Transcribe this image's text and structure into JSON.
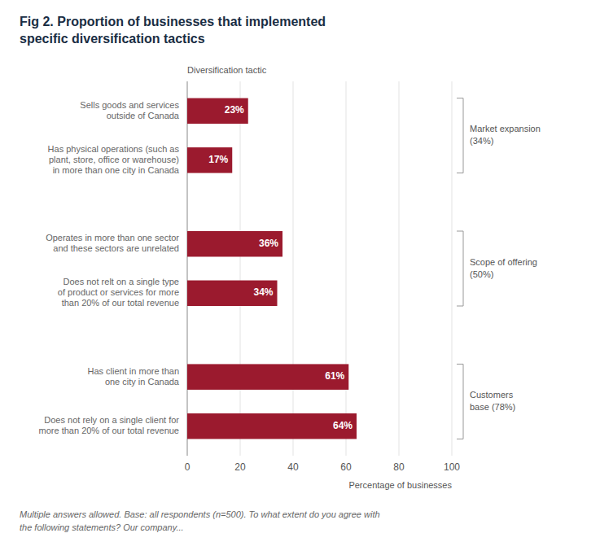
{
  "chart_data": {
    "type": "bar",
    "orientation": "horizontal",
    "title": "Fig 2. Proportion of businesses that implemented\nspecific diversification tactics",
    "categories": [
      "Does not rely on a single client for\nmore than 20% of our total revenue",
      "Has client in more than\none city in Canada",
      "Does not relt on a single type\nof product or services for more\nthan 20% of our total revenue",
      "Operates in more than one sector\nand these sectors are unrelated",
      "Has physical operations (such as\nplant, store, office or warehouse)\nin more than one city in Canada",
      "Sells goods and services\noutside of Canada"
    ],
    "values": [
      64,
      61,
      34,
      36,
      17,
      23
    ],
    "value_labels": [
      "64%",
      "61%",
      "34%",
      "36%",
      "17%",
      "23%"
    ],
    "data_labels": true,
    "color": "#9b1a2e",
    "xlabel": "Percentage of businesses",
    "ylabel": "Diversification tactic",
    "xlim": [
      0,
      100
    ],
    "xticks": [
      0,
      20,
      40,
      60,
      80,
      100
    ],
    "grid": true,
    "groups": [
      {
        "label": "Market expansion\n(34%)",
        "first": 4,
        "last": 5
      },
      {
        "label": "Scope of offering\n(50%)",
        "first": 2,
        "last": 3
      },
      {
        "label": "Customers\nbase (78%)",
        "first": 0,
        "last": 1
      }
    ],
    "footnote": "Multiple answers allowed. Base: all respondents (n=500). To what extent do you agree with\nthe following statements? Our company..."
  }
}
